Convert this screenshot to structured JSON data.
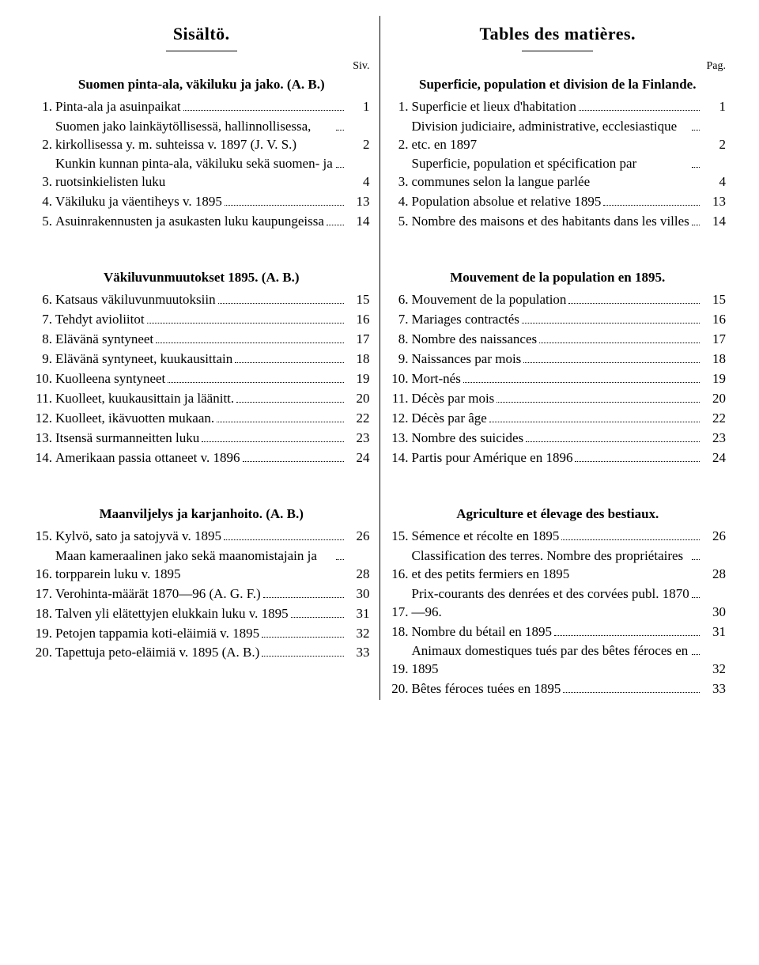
{
  "left": {
    "title": "Sisältö.",
    "pageLabel": "Siv.",
    "sections": [
      {
        "heading": "Suomen pinta-ala, väkiluku ja jako. (A. B.)",
        "items": [
          {
            "n": "1.",
            "text": "Pinta-ala ja asuinpaikat",
            "page": "1"
          },
          {
            "n": "2.",
            "text": "Suomen jako lainkäytöllisessä, hallinnollisessa, kirkollisessa y. m. suhteissa v. 1897 (J. V. S.)",
            "page": "2"
          },
          {
            "n": "3.",
            "text": "Kunkin kunnan pinta-ala, väkiluku sekä suomen- ja ruotsinkielisten luku",
            "page": "4"
          },
          {
            "n": "4.",
            "text": "Väkiluku ja väentiheys v. 1895",
            "page": "13"
          },
          {
            "n": "5.",
            "text": "Asuinrakennusten ja asukasten luku kaupungeissa",
            "page": "14"
          }
        ]
      },
      {
        "heading": "Väkiluvunmuutokset 1895. (A. B.)",
        "items": [
          {
            "n": "6.",
            "text": "Katsaus väkiluvunmuutoksiin",
            "page": "15"
          },
          {
            "n": "7.",
            "text": "Tehdyt avioliitot",
            "page": "16"
          },
          {
            "n": "8.",
            "text": "Elävänä syntyneet",
            "page": "17"
          },
          {
            "n": "9.",
            "text": "Elävänä syntyneet, kuukausittain",
            "page": "18"
          },
          {
            "n": "10.",
            "text": "Kuolleena syntyneet",
            "page": "19"
          },
          {
            "n": "11.",
            "text": "Kuolleet, kuukausittain ja läänitt.",
            "page": "20"
          },
          {
            "n": "12.",
            "text": "Kuolleet, ikävuotten mukaan.",
            "page": "22"
          },
          {
            "n": "13.",
            "text": "Itsensä surmanneitten luku",
            "page": "23"
          },
          {
            "n": "14.",
            "text": "Amerikaan passia ottaneet v. 1896",
            "page": "24"
          }
        ]
      },
      {
        "heading": "Maanviljelys ja karjanhoito. (A. B.)",
        "items": [
          {
            "n": "15.",
            "text": "Kylvö, sato ja satojyvä v. 1895",
            "page": "26"
          },
          {
            "n": "16.",
            "text": "Maan kameraalinen jako sekä maanomistajain ja torpparein luku v. 1895",
            "page": "28"
          },
          {
            "n": "17.",
            "text": "Verohinta-määrät 1870—96 (A. G. F.)",
            "page": "30"
          },
          {
            "n": "18.",
            "text": "Talven yli elätettyjen elukkain luku v. 1895",
            "page": "31"
          },
          {
            "n": "19.",
            "text": "Petojen tappamia koti-eläimiä v. 1895",
            "page": "32"
          },
          {
            "n": "20.",
            "text": "Tapettuja peto-eläimiä v. 1895 (A. B.)",
            "page": "33"
          }
        ]
      }
    ]
  },
  "right": {
    "title": "Tables des matières.",
    "pageLabel": "Pag.",
    "sections": [
      {
        "heading": "Superficie, population et division de la Finlande.",
        "items": [
          {
            "n": "1.",
            "text": "Superficie et lieux d'habitation",
            "page": "1"
          },
          {
            "n": "2.",
            "text": "Division judiciaire, administrative, ecclesiastique etc. en 1897",
            "page": "2"
          },
          {
            "n": "3.",
            "text": "Superficie, population et spécification par communes selon la langue parlée",
            "page": "4"
          },
          {
            "n": "4.",
            "text": "Population absolue et relative 1895",
            "page": "13"
          },
          {
            "n": "5.",
            "text": "Nombre des maisons et des habitants dans les villes",
            "page": "14"
          }
        ]
      },
      {
        "heading": "Mouvement de la population en 1895.",
        "items": [
          {
            "n": "6.",
            "text": "Mouvement de la population",
            "page": "15"
          },
          {
            "n": "7.",
            "text": "Mariages contractés",
            "page": "16"
          },
          {
            "n": "8.",
            "text": "Nombre des naissances",
            "page": "17"
          },
          {
            "n": "9.",
            "text": "Naissances par mois",
            "page": "18"
          },
          {
            "n": "10.",
            "text": "Mort-nés",
            "page": "19"
          },
          {
            "n": "11.",
            "text": "Décès par mois",
            "page": "20"
          },
          {
            "n": "12.",
            "text": "Décès par âge",
            "page": "22"
          },
          {
            "n": "13.",
            "text": "Nombre des suicides",
            "page": "23"
          },
          {
            "n": "14.",
            "text": "Partis pour Amérique en 1896",
            "page": "24"
          }
        ]
      },
      {
        "heading": "Agriculture et élevage des bestiaux.",
        "items": [
          {
            "n": "15.",
            "text": "Sémence et récolte en 1895",
            "page": "26"
          },
          {
            "n": "16.",
            "text": "Classification des terres. Nombre des propriétaires et des petits fermiers en 1895",
            "page": "28"
          },
          {
            "n": "17.",
            "text": "Prix-courants des denrées et des corvées publ. 1870—96.",
            "page": "30"
          },
          {
            "n": "18.",
            "text": "Nombre du bétail en 1895",
            "page": "31"
          },
          {
            "n": "19.",
            "text": "Animaux domestiques tués par des bêtes féroces en 1895",
            "page": "32"
          },
          {
            "n": "20.",
            "text": "Bêtes féroces tuées en 1895",
            "page": "33"
          }
        ]
      }
    ]
  }
}
